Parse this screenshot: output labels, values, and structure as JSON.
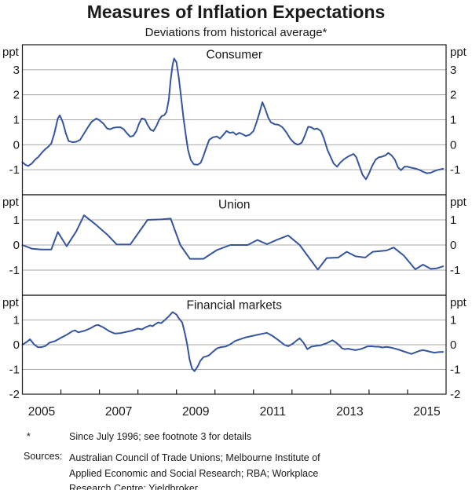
{
  "colors": {
    "line": "#35559f",
    "grid": "#aaaaaa",
    "frame": "#1a1a1a",
    "text": "#1a1a1a"
  },
  "footnote": {
    "marker": "*",
    "text": "Since July 1996; see footnote 3 for details"
  },
  "sources": {
    "label": "Sources:",
    "lines": [
      "Australian Council of Trade Unions; Melbourne Institute of",
      "Applied Economic and Social Research; RBA; Workplace",
      "Research Centre; Yieldbroker"
    ]
  },
  "chart_data": {
    "type": "line",
    "title": "Measures of Inflation Expectations",
    "subtitle": "Deviations from historical average*",
    "unit": "ppt",
    "grid": true,
    "legend_position": "none",
    "x_axis": {
      "range": [
        2004.5,
        2015.5
      ],
      "year_labels": [
        2005,
        2007,
        2009,
        2011,
        2013,
        2015
      ],
      "minor_tick_years": [
        2005.5,
        2006.5,
        2007.5,
        2008.5,
        2009.5,
        2010.5,
        2011.5,
        2012.5,
        2013.5,
        2014.5
      ]
    },
    "panels": [
      {
        "label": "Consumer",
        "unit_left": "ppt",
        "unit_right": "ppt",
        "ylim": [
          -2,
          4
        ],
        "yticks": [
          -1,
          0,
          1,
          2,
          3
        ],
        "series": [
          [
            2004.5,
            -0.7
          ],
          [
            2004.58,
            -0.8
          ],
          [
            2004.65,
            -0.85
          ],
          [
            2004.75,
            -0.74
          ],
          [
            2004.83,
            -0.6
          ],
          [
            2004.92,
            -0.48
          ],
          [
            2005.0,
            -0.33
          ],
          [
            2005.08,
            -0.2
          ],
          [
            2005.17,
            -0.08
          ],
          [
            2005.25,
            0.05
          ],
          [
            2005.33,
            0.45
          ],
          [
            2005.42,
            1.05
          ],
          [
            2005.47,
            1.18
          ],
          [
            2005.55,
            0.9
          ],
          [
            2005.63,
            0.45
          ],
          [
            2005.7,
            0.15
          ],
          [
            2005.8,
            0.1
          ],
          [
            2005.9,
            0.12
          ],
          [
            2006.0,
            0.2
          ],
          [
            2006.1,
            0.45
          ],
          [
            2006.2,
            0.7
          ],
          [
            2006.3,
            0.92
          ],
          [
            2006.42,
            1.05
          ],
          [
            2006.5,
            0.98
          ],
          [
            2006.6,
            0.85
          ],
          [
            2006.7,
            0.65
          ],
          [
            2006.78,
            0.62
          ],
          [
            2006.87,
            0.68
          ],
          [
            2006.95,
            0.7
          ],
          [
            2007.05,
            0.7
          ],
          [
            2007.13,
            0.62
          ],
          [
            2007.22,
            0.45
          ],
          [
            2007.3,
            0.32
          ],
          [
            2007.38,
            0.36
          ],
          [
            2007.46,
            0.55
          ],
          [
            2007.53,
            0.85
          ],
          [
            2007.6,
            1.05
          ],
          [
            2007.68,
            1.02
          ],
          [
            2007.75,
            0.8
          ],
          [
            2007.83,
            0.6
          ],
          [
            2007.9,
            0.55
          ],
          [
            2007.98,
            0.75
          ],
          [
            2008.05,
            1.0
          ],
          [
            2008.12,
            1.15
          ],
          [
            2008.18,
            1.18
          ],
          [
            2008.24,
            1.3
          ],
          [
            2008.3,
            1.8
          ],
          [
            2008.35,
            2.6
          ],
          [
            2008.4,
            3.2
          ],
          [
            2008.44,
            3.45
          ],
          [
            2008.5,
            3.3
          ],
          [
            2008.56,
            2.7
          ],
          [
            2008.62,
            1.9
          ],
          [
            2008.68,
            1.1
          ],
          [
            2008.74,
            0.4
          ],
          [
            2008.8,
            -0.2
          ],
          [
            2008.87,
            -0.6
          ],
          [
            2008.95,
            -0.78
          ],
          [
            2009.05,
            -0.8
          ],
          [
            2009.13,
            -0.72
          ],
          [
            2009.2,
            -0.45
          ],
          [
            2009.28,
            -0.1
          ],
          [
            2009.35,
            0.2
          ],
          [
            2009.45,
            0.3
          ],
          [
            2009.55,
            0.33
          ],
          [
            2009.63,
            0.25
          ],
          [
            2009.72,
            0.4
          ],
          [
            2009.8,
            0.55
          ],
          [
            2009.88,
            0.48
          ],
          [
            2009.97,
            0.5
          ],
          [
            2010.05,
            0.4
          ],
          [
            2010.13,
            0.48
          ],
          [
            2010.22,
            0.42
          ],
          [
            2010.3,
            0.35
          ],
          [
            2010.4,
            0.4
          ],
          [
            2010.5,
            0.55
          ],
          [
            2010.58,
            0.9
          ],
          [
            2010.66,
            1.3
          ],
          [
            2010.73,
            1.7
          ],
          [
            2010.8,
            1.45
          ],
          [
            2010.88,
            1.1
          ],
          [
            2010.95,
            0.9
          ],
          [
            2011.05,
            0.82
          ],
          [
            2011.15,
            0.8
          ],
          [
            2011.25,
            0.7
          ],
          [
            2011.35,
            0.5
          ],
          [
            2011.45,
            0.25
          ],
          [
            2011.55,
            0.08
          ],
          [
            2011.65,
            0.0
          ],
          [
            2011.75,
            0.08
          ],
          [
            2011.83,
            0.35
          ],
          [
            2011.92,
            0.72
          ],
          [
            2012.0,
            0.7
          ],
          [
            2012.08,
            0.62
          ],
          [
            2012.15,
            0.65
          ],
          [
            2012.25,
            0.55
          ],
          [
            2012.33,
            0.25
          ],
          [
            2012.42,
            -0.2
          ],
          [
            2012.5,
            -0.48
          ],
          [
            2012.58,
            -0.75
          ],
          [
            2012.67,
            -0.88
          ],
          [
            2012.75,
            -0.72
          ],
          [
            2012.85,
            -0.58
          ],
          [
            2012.95,
            -0.48
          ],
          [
            2013.05,
            -0.4
          ],
          [
            2013.1,
            -0.37
          ],
          [
            2013.17,
            -0.5
          ],
          [
            2013.25,
            -0.85
          ],
          [
            2013.33,
            -1.2
          ],
          [
            2013.42,
            -1.38
          ],
          [
            2013.5,
            -1.15
          ],
          [
            2013.58,
            -0.85
          ],
          [
            2013.67,
            -0.6
          ],
          [
            2013.75,
            -0.5
          ],
          [
            2013.83,
            -0.48
          ],
          [
            2013.92,
            -0.43
          ],
          [
            2014.0,
            -0.33
          ],
          [
            2014.08,
            -0.42
          ],
          [
            2014.17,
            -0.6
          ],
          [
            2014.25,
            -0.9
          ],
          [
            2014.33,
            -1.02
          ],
          [
            2014.42,
            -0.88
          ],
          [
            2014.5,
            -0.88
          ],
          [
            2014.6,
            -0.92
          ],
          [
            2014.7,
            -0.95
          ],
          [
            2014.8,
            -1.0
          ],
          [
            2014.9,
            -1.08
          ],
          [
            2015.0,
            -1.14
          ],
          [
            2015.1,
            -1.12
          ],
          [
            2015.2,
            -1.05
          ],
          [
            2015.3,
            -1.0
          ],
          [
            2015.42,
            -0.96
          ]
        ]
      },
      {
        "label": "Union",
        "unit_left": "ppt",
        "unit_right": "ppt",
        "ylim": [
          -2,
          2
        ],
        "yticks": [
          -1,
          0,
          1
        ],
        "series": [
          [
            2004.5,
            0.0
          ],
          [
            2004.75,
            -0.15
          ],
          [
            2005.0,
            -0.18
          ],
          [
            2005.25,
            -0.18
          ],
          [
            2005.42,
            0.52
          ],
          [
            2005.65,
            -0.05
          ],
          [
            2005.9,
            0.55
          ],
          [
            2006.1,
            1.18
          ],
          [
            2006.4,
            0.82
          ],
          [
            2006.7,
            0.42
          ],
          [
            2006.95,
            0.02
          ],
          [
            2007.3,
            0.02
          ],
          [
            2007.75,
            1.0
          ],
          [
            2008.1,
            1.02
          ],
          [
            2008.35,
            1.05
          ],
          [
            2008.6,
            0.0
          ],
          [
            2008.85,
            -0.55
          ],
          [
            2009.2,
            -0.55
          ],
          [
            2009.55,
            -0.2
          ],
          [
            2009.9,
            0.0
          ],
          [
            2010.35,
            0.0
          ],
          [
            2010.6,
            0.2
          ],
          [
            2010.85,
            0.03
          ],
          [
            2011.1,
            0.2
          ],
          [
            2011.4,
            0.38
          ],
          [
            2011.7,
            0.0
          ],
          [
            2012.17,
            -0.98
          ],
          [
            2012.4,
            -0.52
          ],
          [
            2012.7,
            -0.5
          ],
          [
            2012.92,
            -0.27
          ],
          [
            2013.15,
            -0.45
          ],
          [
            2013.4,
            -0.5
          ],
          [
            2013.6,
            -0.27
          ],
          [
            2013.95,
            -0.22
          ],
          [
            2014.14,
            -0.1
          ],
          [
            2014.4,
            -0.42
          ],
          [
            2014.7,
            -0.97
          ],
          [
            2014.9,
            -0.78
          ],
          [
            2015.1,
            -0.95
          ],
          [
            2015.25,
            -0.93
          ],
          [
            2015.42,
            -0.85
          ]
        ]
      },
      {
        "label": "Financial markets",
        "unit_left": "ppt",
        "unit_right": "ppt",
        "ylim": [
          -2,
          2
        ],
        "yticks": [
          -2,
          -1,
          0,
          1
        ],
        "series": [
          [
            2004.5,
            0.0
          ],
          [
            2004.6,
            0.1
          ],
          [
            2004.7,
            0.22
          ],
          [
            2004.8,
            0.02
          ],
          [
            2004.9,
            -0.1
          ],
          [
            2005.0,
            -0.1
          ],
          [
            2005.1,
            -0.05
          ],
          [
            2005.2,
            0.08
          ],
          [
            2005.35,
            0.15
          ],
          [
            2005.5,
            0.28
          ],
          [
            2005.65,
            0.4
          ],
          [
            2005.8,
            0.55
          ],
          [
            2005.87,
            0.58
          ],
          [
            2005.95,
            0.5
          ],
          [
            2006.1,
            0.56
          ],
          [
            2006.25,
            0.65
          ],
          [
            2006.4,
            0.78
          ],
          [
            2006.47,
            0.8
          ],
          [
            2006.6,
            0.7
          ],
          [
            2006.75,
            0.55
          ],
          [
            2006.9,
            0.45
          ],
          [
            2007.05,
            0.47
          ],
          [
            2007.2,
            0.52
          ],
          [
            2007.35,
            0.57
          ],
          [
            2007.5,
            0.65
          ],
          [
            2007.6,
            0.62
          ],
          [
            2007.72,
            0.72
          ],
          [
            2007.82,
            0.78
          ],
          [
            2007.88,
            0.75
          ],
          [
            2007.95,
            0.83
          ],
          [
            2008.03,
            0.9
          ],
          [
            2008.1,
            0.87
          ],
          [
            2008.2,
            1.0
          ],
          [
            2008.3,
            1.15
          ],
          [
            2008.4,
            1.32
          ],
          [
            2008.5,
            1.22
          ],
          [
            2008.57,
            1.05
          ],
          [
            2008.65,
            0.9
          ],
          [
            2008.72,
            0.45
          ],
          [
            2008.78,
            0.0
          ],
          [
            2008.84,
            -0.6
          ],
          [
            2008.9,
            -0.95
          ],
          [
            2008.97,
            -1.07
          ],
          [
            2009.05,
            -0.88
          ],
          [
            2009.12,
            -0.65
          ],
          [
            2009.2,
            -0.5
          ],
          [
            2009.28,
            -0.47
          ],
          [
            2009.35,
            -0.42
          ],
          [
            2009.45,
            -0.28
          ],
          [
            2009.55,
            -0.15
          ],
          [
            2009.65,
            -0.1
          ],
          [
            2009.78,
            -0.07
          ],
          [
            2009.9,
            0.02
          ],
          [
            2010.02,
            0.15
          ],
          [
            2010.15,
            0.22
          ],
          [
            2010.3,
            0.3
          ],
          [
            2010.45,
            0.35
          ],
          [
            2010.6,
            0.4
          ],
          [
            2010.75,
            0.45
          ],
          [
            2010.85,
            0.48
          ],
          [
            2011.0,
            0.35
          ],
          [
            2011.15,
            0.18
          ],
          [
            2011.3,
            0.0
          ],
          [
            2011.4,
            -0.06
          ],
          [
            2011.52,
            0.04
          ],
          [
            2011.62,
            0.17
          ],
          [
            2011.7,
            0.26
          ],
          [
            2011.8,
            0.08
          ],
          [
            2011.9,
            -0.18
          ],
          [
            2012.0,
            -0.08
          ],
          [
            2012.1,
            -0.05
          ],
          [
            2012.25,
            -0.02
          ],
          [
            2012.4,
            0.06
          ],
          [
            2012.55,
            0.18
          ],
          [
            2012.65,
            0.08
          ],
          [
            2012.72,
            -0.02
          ],
          [
            2012.8,
            -0.15
          ],
          [
            2012.88,
            -0.18
          ],
          [
            2012.95,
            -0.16
          ],
          [
            2013.05,
            -0.19
          ],
          [
            2013.15,
            -0.22
          ],
          [
            2013.27,
            -0.18
          ],
          [
            2013.38,
            -0.12
          ],
          [
            2013.45,
            -0.07
          ],
          [
            2013.55,
            -0.06
          ],
          [
            2013.65,
            -0.08
          ],
          [
            2013.75,
            -0.08
          ],
          [
            2013.85,
            -0.11
          ],
          [
            2013.95,
            -0.09
          ],
          [
            2014.05,
            -0.11
          ],
          [
            2014.15,
            -0.15
          ],
          [
            2014.25,
            -0.19
          ],
          [
            2014.4,
            -0.27
          ],
          [
            2014.52,
            -0.33
          ],
          [
            2014.6,
            -0.37
          ],
          [
            2014.7,
            -0.31
          ],
          [
            2014.8,
            -0.25
          ],
          [
            2014.9,
            -0.22
          ],
          [
            2015.0,
            -0.25
          ],
          [
            2015.1,
            -0.29
          ],
          [
            2015.2,
            -0.32
          ],
          [
            2015.3,
            -0.3
          ],
          [
            2015.42,
            -0.29
          ]
        ]
      }
    ]
  }
}
